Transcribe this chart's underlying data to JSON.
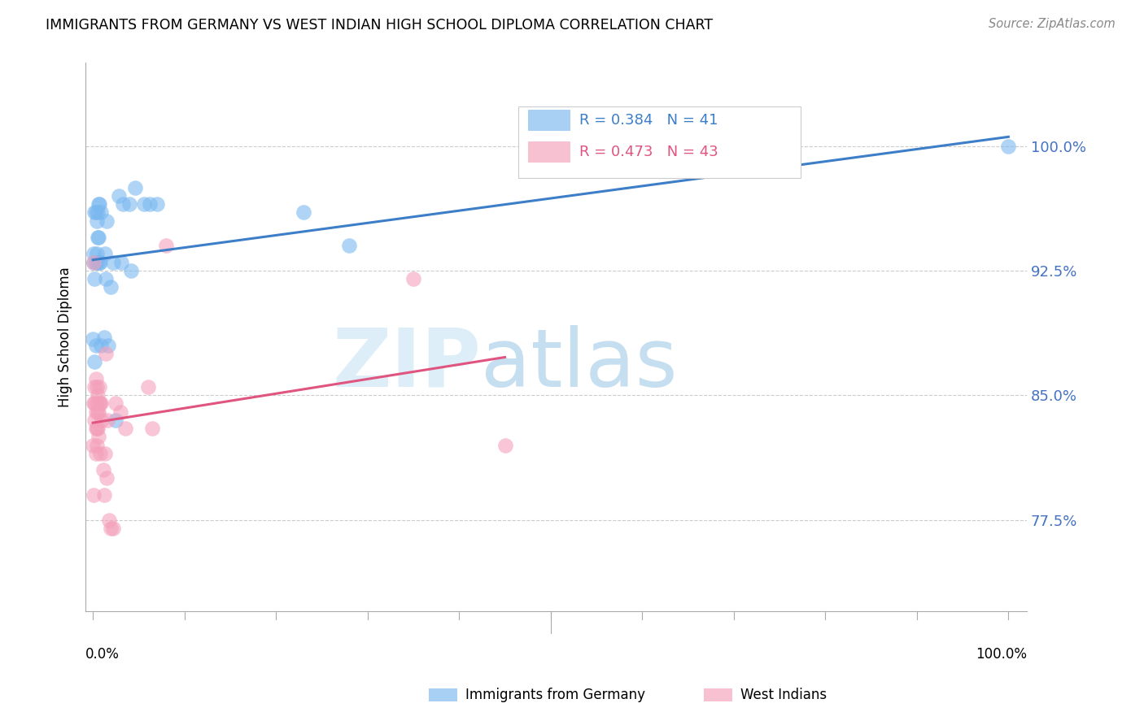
{
  "title": "IMMIGRANTS FROM GERMANY VS WEST INDIAN HIGH SCHOOL DIPLOMA CORRELATION CHART",
  "source": "Source: ZipAtlas.com",
  "ylabel": "High School Diploma",
  "legend_germany": "Immigrants from Germany",
  "legend_west": "West Indians",
  "r_germany": 0.384,
  "n_germany": 41,
  "r_west": 0.473,
  "n_west": 43,
  "color_germany": "#7ab8f0",
  "color_west": "#f4a0bb",
  "trendline_germany": "#3d7ec8",
  "trendline_west": "#e05580",
  "y_ticks": [
    0.775,
    0.85,
    0.925,
    1.0
  ],
  "y_tick_labels": [
    "77.5%",
    "85.0%",
    "92.5%",
    "100.0%"
  ],
  "xlim": [
    -0.008,
    1.02
  ],
  "ylim": [
    0.72,
    1.05
  ],
  "germany_x": [
    0.0,
    0.001,
    0.001,
    0.002,
    0.002,
    0.002,
    0.003,
    0.003,
    0.003,
    0.004,
    0.004,
    0.005,
    0.005,
    0.005,
    0.006,
    0.006,
    0.007,
    0.007,
    0.008,
    0.009,
    0.009,
    0.012,
    0.013,
    0.014,
    0.015,
    0.017,
    0.019,
    0.022,
    0.025,
    0.028,
    0.031,
    0.033,
    0.04,
    0.042,
    0.046,
    0.056,
    0.062,
    0.07,
    0.23,
    0.28,
    1.0
  ],
  "germany_y": [
    0.884,
    0.93,
    0.935,
    0.87,
    0.92,
    0.96,
    0.88,
    0.93,
    0.96,
    0.935,
    0.955,
    0.93,
    0.945,
    0.96,
    0.945,
    0.965,
    0.93,
    0.965,
    0.93,
    0.88,
    0.96,
    0.885,
    0.935,
    0.92,
    0.955,
    0.88,
    0.915,
    0.93,
    0.835,
    0.97,
    0.93,
    0.965,
    0.965,
    0.925,
    0.975,
    0.965,
    0.965,
    0.965,
    0.96,
    0.94,
    1.0
  ],
  "west_x": [
    0.0,
    0.001,
    0.001,
    0.001,
    0.002,
    0.002,
    0.002,
    0.003,
    0.003,
    0.003,
    0.003,
    0.004,
    0.004,
    0.004,
    0.004,
    0.005,
    0.005,
    0.005,
    0.006,
    0.006,
    0.007,
    0.007,
    0.008,
    0.008,
    0.009,
    0.01,
    0.011,
    0.012,
    0.013,
    0.014,
    0.015,
    0.016,
    0.018,
    0.019,
    0.022,
    0.025,
    0.03,
    0.035,
    0.06,
    0.065,
    0.08,
    0.35,
    0.45
  ],
  "west_y": [
    0.82,
    0.79,
    0.845,
    0.93,
    0.835,
    0.845,
    0.855,
    0.815,
    0.83,
    0.84,
    0.86,
    0.82,
    0.83,
    0.845,
    0.855,
    0.83,
    0.84,
    0.85,
    0.825,
    0.84,
    0.845,
    0.855,
    0.815,
    0.845,
    0.845,
    0.835,
    0.805,
    0.79,
    0.815,
    0.875,
    0.8,
    0.835,
    0.775,
    0.77,
    0.77,
    0.845,
    0.84,
    0.83,
    0.855,
    0.83,
    0.94,
    0.92,
    0.82
  ]
}
